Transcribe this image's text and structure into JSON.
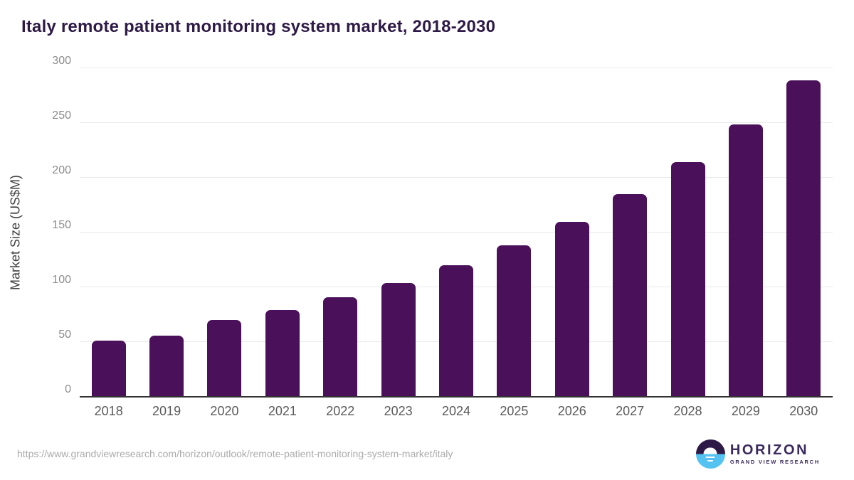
{
  "title": "Italy remote patient monitoring system market, 2018-2030",
  "chart_data": {
    "type": "bar",
    "categories": [
      "2018",
      "2019",
      "2020",
      "2021",
      "2022",
      "2023",
      "2024",
      "2025",
      "2026",
      "2027",
      "2028",
      "2029",
      "2030"
    ],
    "values": [
      51,
      56,
      70,
      79,
      91,
      104,
      120,
      138,
      160,
      185,
      214,
      249,
      289
    ],
    "title": "Italy remote patient monitoring system market, 2018-2030",
    "xlabel": "",
    "ylabel": "Market Size (US$M)",
    "ylim": [
      0,
      300
    ],
    "yticks": [
      0,
      50,
      100,
      150,
      200,
      250,
      300
    ],
    "grid": true,
    "legend": false,
    "bar_color": "#4a1059"
  },
  "colors": {
    "bar": "#4a1059",
    "title_text": "#2e1a47",
    "gridline": "#e9e9e9",
    "axis_line": "#333333",
    "y_tick_text": "#8c8c8c",
    "x_tick_text": "#5a5a5a",
    "logo_purple": "#2e1a47",
    "logo_blue": "#54c3f1",
    "logo_text": "#3b2a5d"
  },
  "footer": {
    "source_url": "https://www.grandviewresearch.com/horizon/outlook/remote-patient-monitoring-system-market/italy",
    "logo": {
      "brand": "HORIZON",
      "sub_brand": "GRAND VIEW RESEARCH"
    }
  }
}
